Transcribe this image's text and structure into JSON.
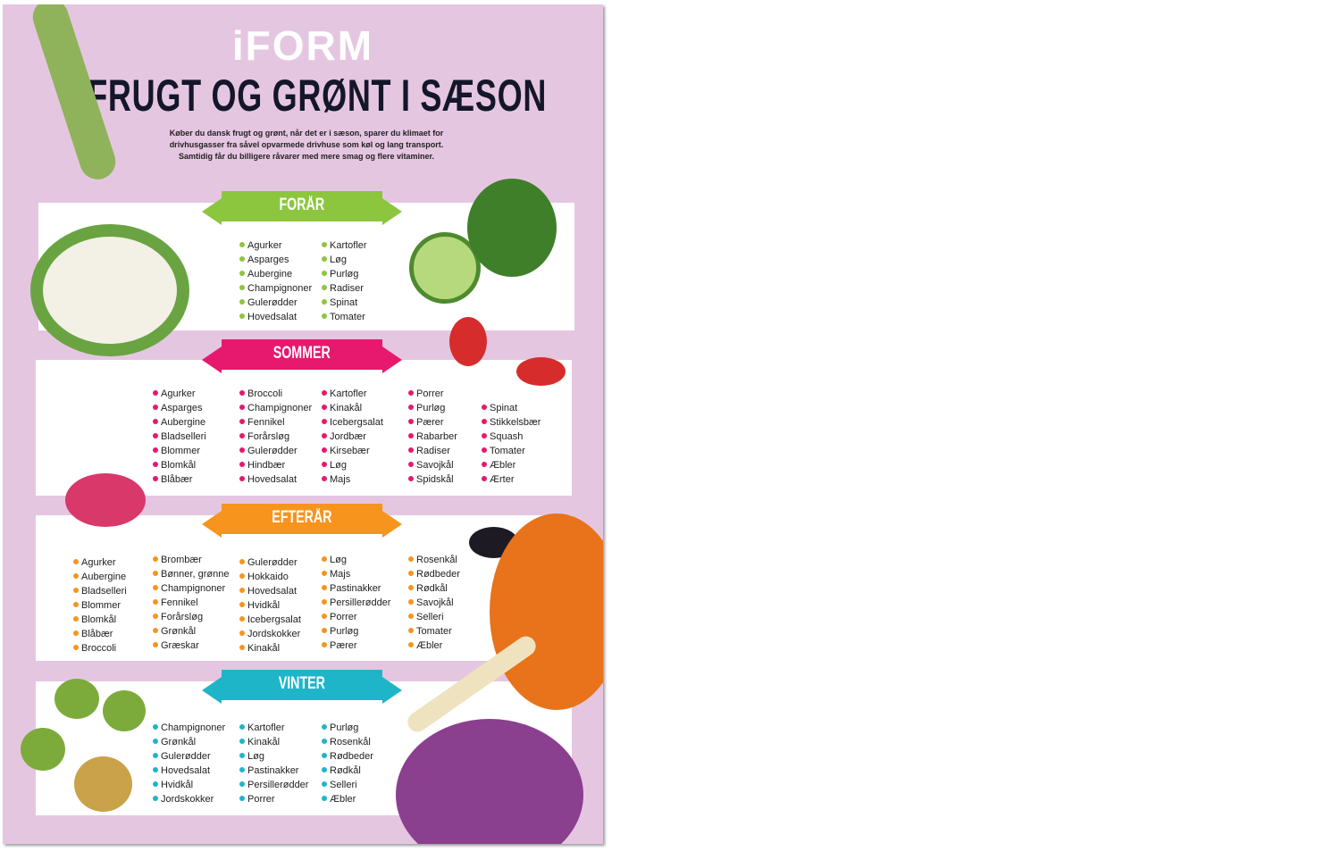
{
  "logo": "iFORM",
  "title": "FRUGT OG GRØNT I SÆSON",
  "intro": [
    "Køber du dansk frugt og grønt, når det er i sæson, sparer du klimaet for",
    "drivhusgasser fra såvel opvarmede drivhuse som køl og lang transport.",
    "Samtidig får du billigere råvarer med mere smag og flere vitaminer."
  ],
  "colors": {
    "background": "#e5c6e1",
    "spring": "#8cc63f",
    "summer": "#e6196e",
    "autumn": "#f7941d",
    "winter": "#1fb5c9"
  },
  "seasons": [
    {
      "name": "FORÅR",
      "columns": [
        [
          "Agurker",
          "Asparges",
          "Aubergine",
          "Champignoner",
          "Gulerødder",
          "Hovedsalat"
        ],
        [
          "Kartofler",
          "Løg",
          "Purløg",
          "Radiser",
          "Spinat",
          "Tomater"
        ]
      ]
    },
    {
      "name": "SOMMER",
      "columns": [
        [
          "Agurker",
          "Asparges",
          "Aubergine",
          "Bladselleri",
          "Blommer",
          "Blomkål",
          "Blåbær"
        ],
        [
          "Broccoli",
          "Champignoner",
          "Fennikel",
          "Forårsløg",
          "Gulerødder",
          "Hindbær",
          "Hovedsalat"
        ],
        [
          "Kartofler",
          "Kinakål",
          "Icebergsalat",
          "Jordbær",
          "Kirsebær",
          "Løg",
          "Majs"
        ],
        [
          "Porrer",
          "Purløg",
          "Pærer",
          "Rabarber",
          "Radiser",
          "Savojkål",
          "Spidskål"
        ],
        [
          "Spinat",
          "Stikkelsbær",
          "Squash",
          "Tomater",
          "Æbler",
          "Ærter"
        ]
      ]
    },
    {
      "name": "EFTERÅR",
      "columns": [
        [
          "Agurker",
          "Aubergine",
          "Bladselleri",
          "Blommer",
          "Blomkål",
          "Blåbær",
          "Broccoli"
        ],
        [
          "Brombær",
          "Bønner, grønne",
          "Champignoner",
          "Fennikel",
          "Forårsløg",
          "Grønkål",
          "Græskar"
        ],
        [
          "Gulerødder",
          "Hokkaido",
          "Hovedsalat",
          "Hvidkål",
          "Icebergsalat",
          "Jordskokker",
          "Kinakål"
        ],
        [
          "Løg",
          "Majs",
          "Pastinakker",
          "Persillerødder",
          "Porrer",
          "Purløg",
          "Pærer"
        ],
        [
          "Rosenkål",
          "Rødbeder",
          "Rødkål",
          "Savojkål",
          "Selleri",
          "Tomater",
          "Æbler"
        ]
      ]
    },
    {
      "name": "VINTER",
      "columns": [
        [
          "Champignoner",
          "Grønkål",
          "Gulerødder",
          "Hovedsalat",
          "Hvidkål",
          "Jordskokker"
        ],
        [
          "Kartofler",
          "Kinakål",
          "Løg",
          "Pastinakker",
          "Persillerødder",
          "Porrer"
        ],
        [
          "Purløg",
          "Rosenkål",
          "Rødbeder",
          "Rødkål",
          "Selleri",
          "Æbler"
        ]
      ]
    }
  ]
}
